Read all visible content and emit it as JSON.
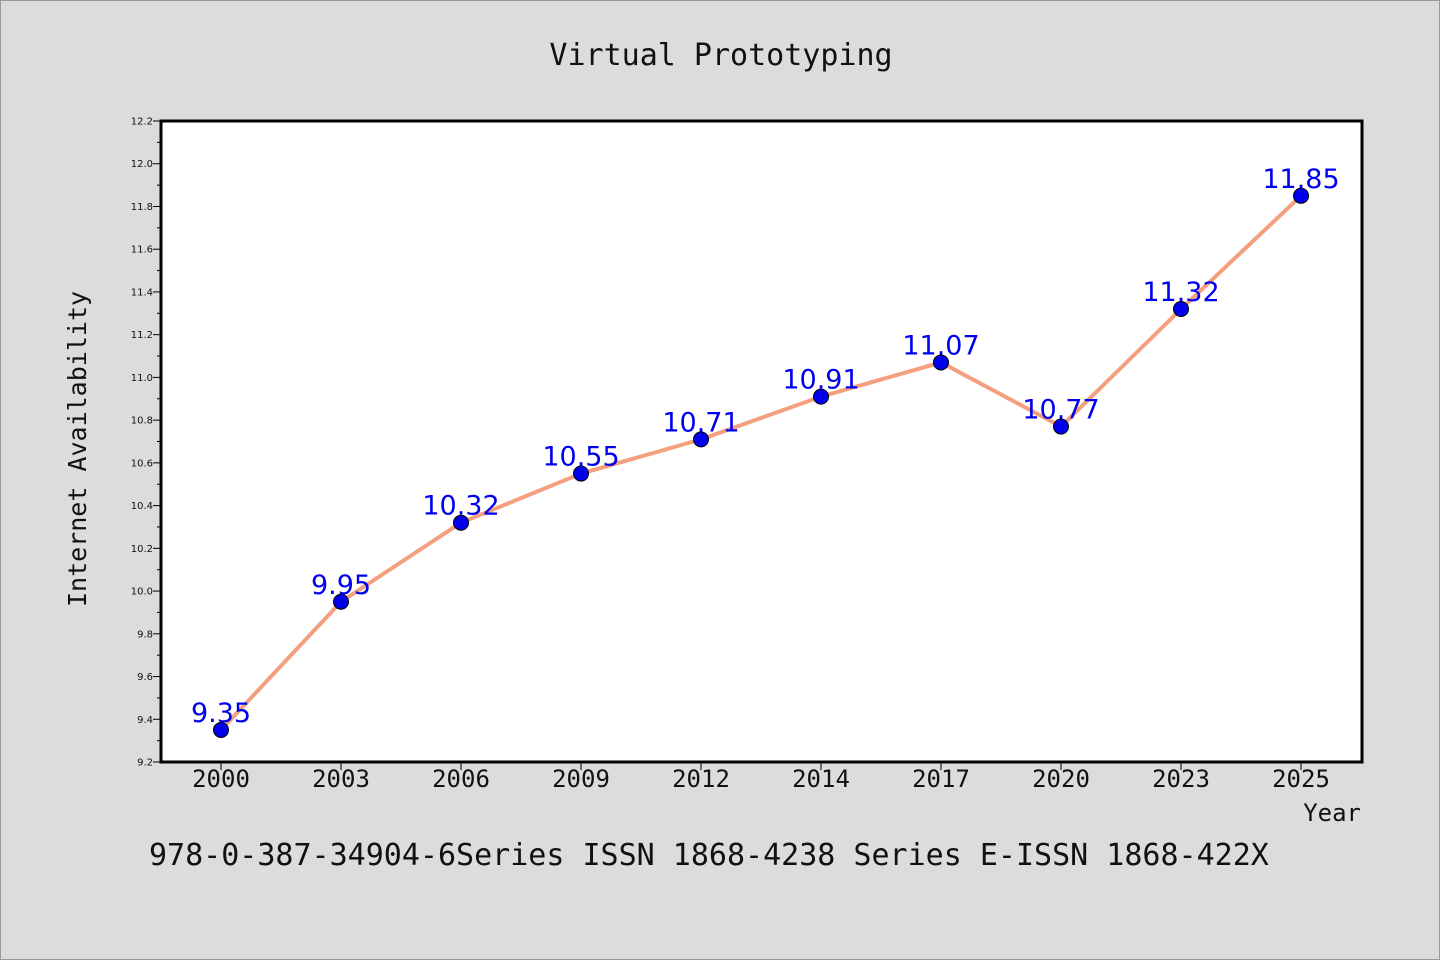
{
  "chart_data": {
    "type": "line",
    "title": "Virtual Prototyping",
    "xlabel": "Year",
    "ylabel": "Internet Availability",
    "categories": [
      "2000",
      "2003",
      "2006",
      "2009",
      "2012",
      "2014",
      "2017",
      "2020",
      "2023",
      "2025"
    ],
    "series": [
      {
        "values": [
          9.35,
          9.95,
          10.32,
          10.55,
          10.71,
          10.91,
          11.07,
          10.77,
          11.32,
          11.85
        ],
        "data_labels": [
          "9.35",
          "9.95",
          "10.32",
          "10.55",
          "10.71",
          "10.91",
          "11.07",
          "10.77",
          "11.32",
          "11.85"
        ],
        "line_color": "#f4a07e",
        "marker_color": "#0000ee",
        "label_color": "#0000ee"
      }
    ],
    "ylim": [
      9.2,
      12.2
    ],
    "yticks": [
      "9.2",
      "9.4",
      "9.6",
      "9.8",
      "10.0",
      "10.2",
      "10.4",
      "10.6",
      "10.8",
      "11.0",
      "11.2",
      "11.4",
      "11.6",
      "11.8",
      "12.0",
      "12.2"
    ],
    "grid": false,
    "legend": "none",
    "footer": "978-0-387-34904-6Series ISSN 1868-4238 Series E-ISSN 1868-422X"
  }
}
